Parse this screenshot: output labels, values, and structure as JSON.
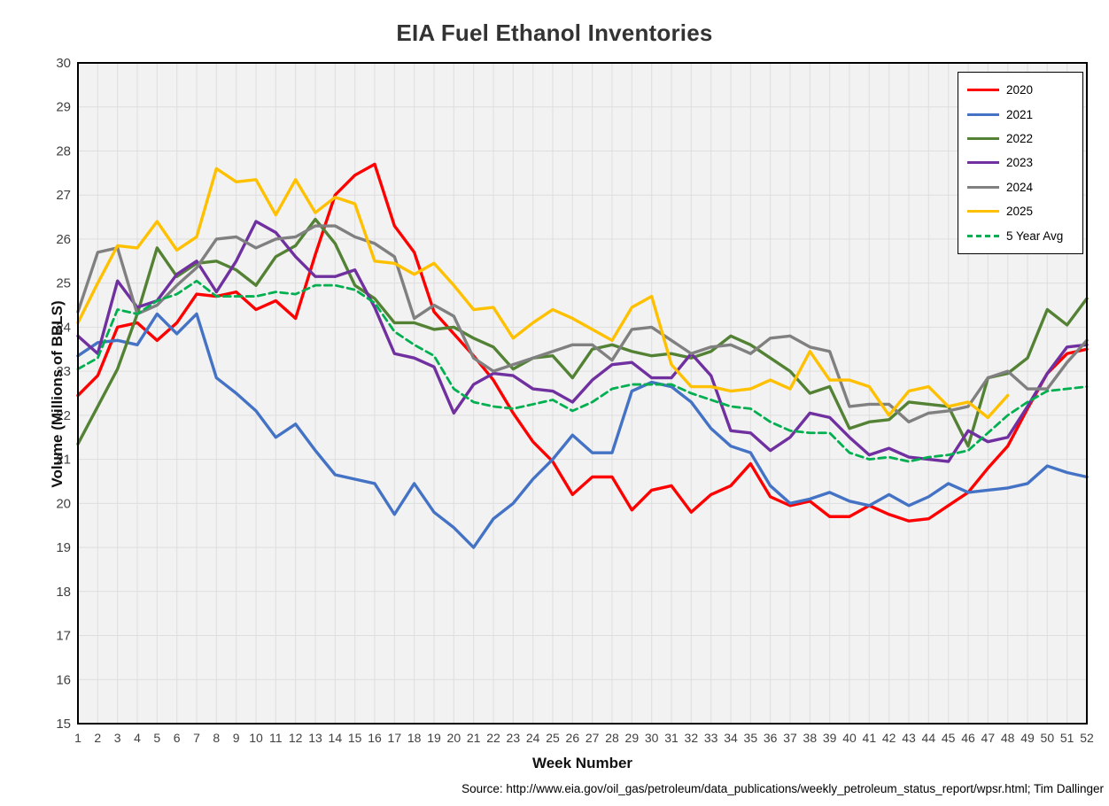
{
  "title": "EIA Fuel Ethanol Inventories",
  "source_note": "Source: http://www.eia.gov/oil_gas/petroleum/data_publications/weekly_petroleum_status_report/wpsr.html; Tim Dallinger",
  "colors": {
    "plot_background": "#f2f2f2",
    "gridline": "#dedede",
    "plot_border": "#000000",
    "tick_label": "#404040",
    "title_text": "#333333"
  },
  "chart_data": {
    "type": "line",
    "title": "EIA Fuel Ethanol Inventories",
    "xlabel": "Week Number",
    "ylabel": "Volume (Millions of BBLS)",
    "x": [
      1,
      2,
      3,
      4,
      5,
      6,
      7,
      8,
      9,
      10,
      11,
      12,
      13,
      14,
      15,
      16,
      17,
      18,
      19,
      20,
      21,
      22,
      23,
      24,
      25,
      26,
      27,
      28,
      29,
      30,
      31,
      32,
      33,
      34,
      35,
      36,
      37,
      38,
      39,
      40,
      41,
      42,
      43,
      44,
      45,
      46,
      47,
      48,
      49,
      50,
      51,
      52
    ],
    "ylim": [
      15,
      30
    ],
    "ytick_step": 1,
    "grid": true,
    "legend_position": "top-right",
    "series": [
      {
        "name": "2020",
        "color": "#ff0000",
        "dash": false,
        "values": [
          22.45,
          22.9,
          24.0,
          24.1,
          23.7,
          24.1,
          24.75,
          24.7,
          24.8,
          24.4,
          24.6,
          24.2,
          25.65,
          27.0,
          27.45,
          27.7,
          26.3,
          25.7,
          24.35,
          23.85,
          23.35,
          22.8,
          22.05,
          21.4,
          20.95,
          20.2,
          20.6,
          20.6,
          19.85,
          20.3,
          20.4,
          19.8,
          20.2,
          20.4,
          20.9,
          20.15,
          19.95,
          20.05,
          19.7,
          19.7,
          19.95,
          19.75,
          19.6,
          19.65,
          19.95,
          20.25,
          20.8,
          21.3,
          22.15,
          22.95,
          23.4,
          23.5
        ]
      },
      {
        "name": "2021",
        "color": "#4472c4",
        "dash": false,
        "values": [
          23.35,
          23.65,
          23.7,
          23.6,
          24.3,
          23.85,
          24.3,
          22.85,
          22.5,
          22.1,
          21.5,
          21.8,
          21.2,
          20.65,
          20.55,
          20.45,
          19.75,
          20.45,
          19.8,
          19.45,
          19.0,
          19.65,
          20.0,
          20.55,
          21.0,
          21.55,
          21.15,
          21.15,
          22.55,
          22.75,
          22.65,
          22.3,
          21.7,
          21.3,
          21.15,
          20.4,
          20.0,
          20.1,
          20.25,
          20.05,
          19.95,
          20.2,
          19.95,
          20.15,
          20.45,
          20.25,
          20.3,
          20.35,
          20.45,
          20.85,
          20.7,
          20.6
        ]
      },
      {
        "name": "2022",
        "color": "#548235",
        "dash": false,
        "values": [
          21.35,
          22.2,
          23.05,
          24.3,
          25.8,
          25.15,
          25.45,
          25.5,
          25.3,
          24.95,
          25.6,
          25.85,
          26.45,
          25.9,
          24.95,
          24.65,
          24.1,
          24.1,
          23.95,
          24.0,
          23.75,
          23.55,
          23.05,
          23.3,
          23.35,
          22.85,
          23.5,
          23.6,
          23.45,
          23.35,
          23.4,
          23.3,
          23.45,
          23.8,
          23.6,
          23.3,
          23.0,
          22.5,
          22.65,
          21.7,
          21.85,
          21.9,
          22.3,
          22.25,
          22.2,
          21.3,
          22.85,
          22.95,
          23.3,
          24.4,
          24.05,
          24.65
        ]
      },
      {
        "name": "2023",
        "color": "#7030a0",
        "dash": false,
        "values": [
          23.8,
          23.4,
          25.05,
          24.45,
          24.6,
          25.2,
          25.5,
          24.8,
          25.5,
          26.4,
          26.15,
          25.6,
          25.15,
          25.15,
          25.3,
          24.45,
          23.4,
          23.3,
          23.1,
          22.05,
          22.7,
          22.95,
          22.9,
          22.6,
          22.55,
          22.3,
          22.8,
          23.15,
          23.2,
          22.85,
          22.85,
          23.4,
          22.9,
          21.65,
          21.6,
          21.2,
          21.5,
          22.05,
          21.95,
          21.5,
          21.1,
          21.25,
          21.05,
          21.0,
          20.95,
          21.65,
          21.4,
          21.5,
          22.2,
          22.95,
          23.55,
          23.6
        ]
      },
      {
        "name": "2024",
        "color": "#808080",
        "dash": false,
        "values": [
          24.35,
          25.7,
          25.8,
          24.3,
          24.5,
          24.95,
          25.35,
          26.0,
          26.05,
          25.8,
          26.0,
          26.05,
          26.3,
          26.3,
          26.05,
          25.9,
          25.6,
          24.2,
          24.5,
          24.25,
          23.3,
          23.0,
          23.15,
          23.3,
          23.45,
          23.6,
          23.6,
          23.25,
          23.95,
          24.0,
          23.7,
          23.4,
          23.55,
          23.6,
          23.4,
          23.75,
          23.8,
          23.55,
          23.45,
          22.2,
          22.25,
          22.25,
          21.85,
          22.05,
          22.1,
          22.2,
          22.85,
          23.0,
          22.6,
          22.6,
          23.2,
          23.7
        ]
      },
      {
        "name": "2025",
        "color": "#ffc000",
        "dash": false,
        "values": [
          24.1,
          25.0,
          25.85,
          25.8,
          26.4,
          25.75,
          26.05,
          27.6,
          27.3,
          27.35,
          26.55,
          27.35,
          26.6,
          26.95,
          26.8,
          25.5,
          25.45,
          25.2,
          25.45,
          24.95,
          24.4,
          24.45,
          23.75,
          24.1,
          24.4,
          24.2,
          23.95,
          23.7,
          24.45,
          24.7,
          23.15,
          22.65,
          22.65,
          22.55,
          22.6,
          22.8,
          22.6,
          23.45,
          22.8,
          22.8,
          22.65,
          22.0,
          22.55,
          22.65,
          22.2,
          22.3,
          21.95,
          22.45,
          null,
          null,
          null,
          null
        ]
      },
      {
        "name": "5 Year Avg",
        "color": "#00b050",
        "dash": true,
        "values": [
          23.05,
          23.3,
          24.4,
          24.3,
          24.6,
          24.75,
          25.05,
          24.7,
          24.7,
          24.7,
          24.8,
          24.75,
          24.95,
          24.95,
          24.85,
          24.55,
          23.9,
          23.6,
          23.35,
          22.6,
          22.3,
          22.2,
          22.15,
          22.25,
          22.35,
          22.1,
          22.3,
          22.6,
          22.7,
          22.7,
          22.7,
          22.5,
          22.35,
          22.2,
          22.15,
          21.85,
          21.65,
          21.6,
          21.6,
          21.15,
          21.0,
          21.05,
          20.95,
          21.05,
          21.1,
          21.2,
          21.6,
          22.0,
          22.3,
          22.55,
          22.6,
          22.65
        ]
      }
    ]
  }
}
